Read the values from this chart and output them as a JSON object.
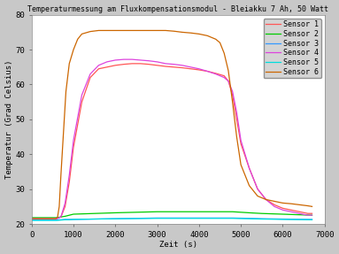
{
  "title": "Temperaturmessung am Fluxkompensationsmodul - Bleiakku 7 Ah, 50 Watt",
  "xlabel": "Zeit (s)",
  "ylabel": "Temperatur (Grad Celsius)",
  "xlim": [
    0,
    7000
  ],
  "ylim": [
    20,
    80
  ],
  "xticks": [
    0,
    1000,
    2000,
    3000,
    4000,
    5000,
    6000,
    7000
  ],
  "yticks": [
    20,
    30,
    40,
    50,
    60,
    70,
    80
  ],
  "background_color": "#c8c8c8",
  "plot_background": "#ffffff",
  "grid_color": "#aaaaaa",
  "sensors": [
    {
      "name": "Sensor 1",
      "color": "#ff5555",
      "points": [
        [
          0,
          21.5
        ],
        [
          600,
          21.5
        ],
        [
          700,
          22
        ],
        [
          800,
          25
        ],
        [
          900,
          32
        ],
        [
          1000,
          42
        ],
        [
          1200,
          55
        ],
        [
          1400,
          62
        ],
        [
          1600,
          64.5
        ],
        [
          1800,
          65
        ],
        [
          2000,
          65.5
        ],
        [
          2200,
          65.8
        ],
        [
          2400,
          66
        ],
        [
          2600,
          66
        ],
        [
          2800,
          65.8
        ],
        [
          3000,
          65.5
        ],
        [
          3200,
          65.2
        ],
        [
          3400,
          65
        ],
        [
          3600,
          64.8
        ],
        [
          3800,
          64.5
        ],
        [
          4000,
          64.2
        ],
        [
          4200,
          63.8
        ],
        [
          4400,
          63.2
        ],
        [
          4600,
          62.5
        ],
        [
          4700,
          61
        ],
        [
          4800,
          57
        ],
        [
          4900,
          50
        ],
        [
          5000,
          43
        ],
        [
          5200,
          36
        ],
        [
          5400,
          30
        ],
        [
          5600,
          27
        ],
        [
          5800,
          25.5
        ],
        [
          6000,
          24.5
        ],
        [
          6200,
          24
        ],
        [
          6400,
          23.5
        ],
        [
          6600,
          23
        ],
        [
          6700,
          23
        ]
      ]
    },
    {
      "name": "Sensor 2",
      "color": "#00cc00",
      "points": [
        [
          0,
          21.8
        ],
        [
          600,
          21.8
        ],
        [
          700,
          22
        ],
        [
          800,
          22.2
        ],
        [
          900,
          22.5
        ],
        [
          1000,
          22.8
        ],
        [
          2000,
          23.2
        ],
        [
          3000,
          23.5
        ],
        [
          4000,
          23.5
        ],
        [
          4800,
          23.5
        ],
        [
          5200,
          23.2
        ],
        [
          5500,
          23
        ],
        [
          6000,
          22.8
        ],
        [
          6700,
          22.5
        ]
      ]
    },
    {
      "name": "Sensor 3",
      "color": "#3399ff",
      "points": [
        [
          0,
          21.2
        ],
        [
          600,
          21.2
        ],
        [
          700,
          21.2
        ],
        [
          800,
          21.3
        ],
        [
          900,
          21.3
        ],
        [
          1000,
          21.3
        ],
        [
          2000,
          21.5
        ],
        [
          3000,
          21.7
        ],
        [
          4000,
          21.7
        ],
        [
          4800,
          21.7
        ],
        [
          5200,
          21.6
        ],
        [
          5500,
          21.5
        ],
        [
          6000,
          21.4
        ],
        [
          6700,
          21.3
        ]
      ]
    },
    {
      "name": "Sensor 4",
      "color": "#dd44dd",
      "points": [
        [
          0,
          21.5
        ],
        [
          600,
          21.5
        ],
        [
          700,
          22
        ],
        [
          800,
          26
        ],
        [
          900,
          34
        ],
        [
          1000,
          44
        ],
        [
          1200,
          57
        ],
        [
          1400,
          63
        ],
        [
          1600,
          65.5
        ],
        [
          1800,
          66.5
        ],
        [
          2000,
          67
        ],
        [
          2200,
          67.2
        ],
        [
          2400,
          67.2
        ],
        [
          2600,
          67
        ],
        [
          2800,
          66.8
        ],
        [
          3000,
          66.5
        ],
        [
          3200,
          66
        ],
        [
          3400,
          65.8
        ],
        [
          3600,
          65.5
        ],
        [
          3800,
          65
        ],
        [
          4000,
          64.5
        ],
        [
          4200,
          63.8
        ],
        [
          4400,
          63
        ],
        [
          4600,
          62
        ],
        [
          4700,
          61
        ],
        [
          4800,
          58
        ],
        [
          4900,
          52
        ],
        [
          5000,
          44
        ],
        [
          5200,
          36
        ],
        [
          5400,
          30
        ],
        [
          5600,
          27
        ],
        [
          5800,
          25
        ],
        [
          6000,
          24
        ],
        [
          6200,
          23.5
        ],
        [
          6400,
          23
        ],
        [
          6600,
          22.5
        ],
        [
          6700,
          22.5
        ]
      ]
    },
    {
      "name": "Sensor 5",
      "color": "#00dddd",
      "points": [
        [
          0,
          21.0
        ],
        [
          600,
          21.0
        ],
        [
          700,
          21.1
        ],
        [
          800,
          21.2
        ],
        [
          900,
          21.2
        ],
        [
          1000,
          21.3
        ],
        [
          2000,
          21.5
        ],
        [
          3000,
          21.6
        ],
        [
          4000,
          21.6
        ],
        [
          4800,
          21.6
        ],
        [
          5200,
          21.5
        ],
        [
          5500,
          21.4
        ],
        [
          6000,
          21.3
        ],
        [
          6700,
          21.2
        ]
      ]
    },
    {
      "name": "Sensor 6",
      "color": "#cc6600",
      "points": [
        [
          0,
          21.5
        ],
        [
          580,
          21.5
        ],
        [
          620,
          22
        ],
        [
          660,
          25
        ],
        [
          700,
          34
        ],
        [
          750,
          44
        ],
        [
          820,
          58
        ],
        [
          900,
          66
        ],
        [
          1000,
          70
        ],
        [
          1100,
          73
        ],
        [
          1200,
          74.5
        ],
        [
          1400,
          75.2
        ],
        [
          1600,
          75.5
        ],
        [
          1800,
          75.5
        ],
        [
          2000,
          75.5
        ],
        [
          2200,
          75.5
        ],
        [
          2400,
          75.5
        ],
        [
          2600,
          75.5
        ],
        [
          2800,
          75.5
        ],
        [
          3000,
          75.5
        ],
        [
          3200,
          75.5
        ],
        [
          3400,
          75.3
        ],
        [
          3600,
          75
        ],
        [
          3800,
          74.8
        ],
        [
          4000,
          74.5
        ],
        [
          4200,
          74
        ],
        [
          4400,
          73
        ],
        [
          4500,
          72
        ],
        [
          4600,
          69
        ],
        [
          4700,
          64
        ],
        [
          4800,
          55
        ],
        [
          4900,
          45
        ],
        [
          5000,
          37
        ],
        [
          5200,
          31
        ],
        [
          5400,
          28
        ],
        [
          5600,
          27
        ],
        [
          5800,
          26.5
        ],
        [
          6000,
          26
        ],
        [
          6200,
          25.8
        ],
        [
          6400,
          25.5
        ],
        [
          6600,
          25.2
        ],
        [
          6700,
          25
        ]
      ]
    }
  ],
  "legend": {
    "loc": "upper right",
    "facecolor": "#d0d0d0",
    "edgecolor": "#888888",
    "fontsize": 6.0,
    "handlelength": 2.0,
    "labelspacing": 0.2,
    "borderpad": 0.3
  }
}
